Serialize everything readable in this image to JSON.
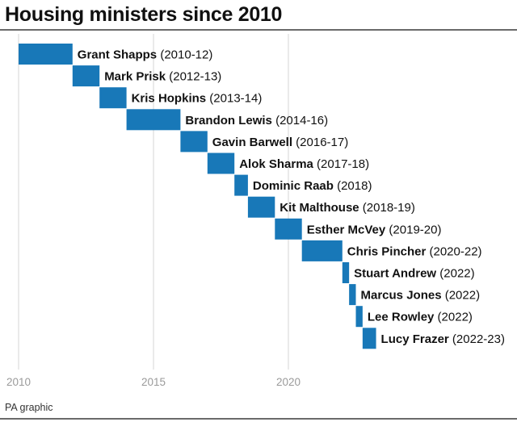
{
  "title": "Housing ministers since 2010",
  "source": "PA graphic",
  "chart_data": {
    "type": "bar",
    "subtype": "gantt",
    "title": "Housing ministers since 2010",
    "xlim": [
      2010,
      2024.2
    ],
    "x_ticks": [
      2010,
      2015,
      2020
    ],
    "bar_color": "#1878b8",
    "axis_line_color": "#111111",
    "gridlines": "vertical at tick years",
    "grid_color": "#d4d4d4",
    "ministers": [
      {
        "name": "Grant Shapps",
        "period": "(2010-12)",
        "start": 2010.0,
        "end": 2012.0
      },
      {
        "name": "Mark Prisk",
        "period": "(2012-13)",
        "start": 2012.0,
        "end": 2013.0
      },
      {
        "name": "Kris Hopkins",
        "period": "(2013-14)",
        "start": 2013.0,
        "end": 2014.0
      },
      {
        "name": "Brandon Lewis",
        "period": "(2014-16)",
        "start": 2014.0,
        "end": 2016.0
      },
      {
        "name": "Gavin Barwell",
        "period": "(2016-17)",
        "start": 2016.0,
        "end": 2017.0
      },
      {
        "name": "Alok Sharma",
        "period": "(2017-18)",
        "start": 2017.0,
        "end": 2018.0
      },
      {
        "name": "Dominic Raab",
        "period": "(2018)",
        "start": 2018.0,
        "end": 2018.5
      },
      {
        "name": "Kit Malthouse",
        "period": "(2018-19)",
        "start": 2018.5,
        "end": 2019.5
      },
      {
        "name": "Esther McVey",
        "period": "(2019-20)",
        "start": 2019.5,
        "end": 2020.5
      },
      {
        "name": "Chris Pincher",
        "period": "(2020-22)",
        "start": 2020.5,
        "end": 2022.0
      },
      {
        "name": "Stuart Andrew",
        "period": "(2022)",
        "start": 2022.0,
        "end": 2022.25
      },
      {
        "name": "Marcus Jones",
        "period": "(2022)",
        "start": 2022.25,
        "end": 2022.5
      },
      {
        "name": "Lee Rowley",
        "period": "(2022)",
        "start": 2022.5,
        "end": 2022.75
      },
      {
        "name": "Lucy Frazer",
        "period": "(2022-23)",
        "start": 2022.75,
        "end": 2023.25
      }
    ]
  }
}
